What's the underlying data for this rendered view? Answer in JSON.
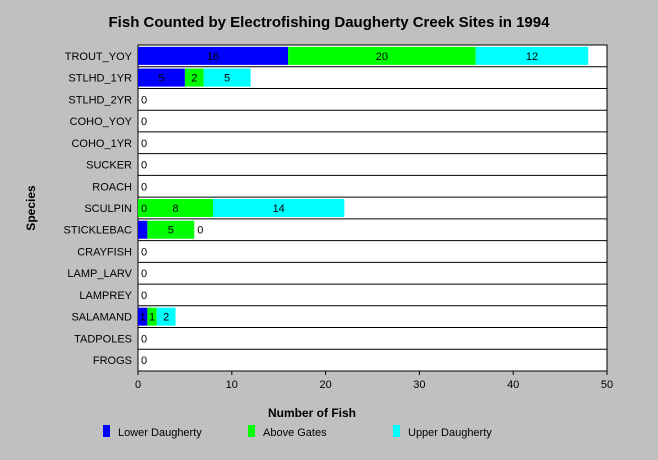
{
  "chart_data": {
    "type": "bar",
    "orientation": "horizontal",
    "stacked": true,
    "title": "Fish Counted by Electrofishing Daugherty Creek Sites in 1994",
    "xlabel": "Number of Fish",
    "ylabel": "Species",
    "xlim": [
      0,
      50
    ],
    "xticks": [
      0,
      10,
      20,
      30,
      40,
      50
    ],
    "grid": "horizontal lines per category",
    "legend_position": "bottom",
    "categories": [
      "TROUT_YOY",
      "STLHD_1YR",
      "STLHD_2YR",
      "COHO_YOY",
      "COHO_1YR",
      "SUCKER",
      "ROACH",
      "SCULPIN",
      "STICKLEBAC",
      "CRAYFISH",
      "LAMP_LARV",
      "LAMPREY",
      "SALAMAND",
      "TADPOLES",
      "FROGS"
    ],
    "series": [
      {
        "name": "Lower Daugherty",
        "color": "#0000ff",
        "values": [
          16,
          5,
          0,
          0,
          0,
          0,
          0,
          0,
          1,
          0,
          0,
          0,
          1,
          0,
          0
        ]
      },
      {
        "name": "Above Gates",
        "color": "#00ff00",
        "values": [
          20,
          2,
          0,
          0,
          0,
          0,
          0,
          8,
          5,
          0,
          0,
          0,
          1,
          0,
          0
        ]
      },
      {
        "name": "Upper Daugherty",
        "color": "#00ffff",
        "values": [
          12,
          5,
          0,
          0,
          0,
          0,
          0,
          14,
          0,
          0,
          0,
          0,
          2,
          0,
          0
        ]
      }
    ],
    "data_labels": [
      [
        "16",
        "20",
        "12"
      ],
      [
        "5",
        "2",
        "5"
      ],
      [
        "0",
        "",
        ""
      ],
      [
        "0",
        "",
        ""
      ],
      [
        "0",
        "",
        ""
      ],
      [
        "0",
        "",
        ""
      ],
      [
        "0",
        "",
        ""
      ],
      [
        "0",
        "8",
        "14"
      ],
      [
        "",
        "5",
        "0"
      ],
      [
        "0",
        "",
        ""
      ],
      [
        "0",
        "",
        ""
      ],
      [
        "0",
        "",
        ""
      ],
      [
        "1",
        "1",
        "2"
      ],
      [
        "0",
        "",
        ""
      ],
      [
        "0",
        "",
        ""
      ]
    ]
  }
}
